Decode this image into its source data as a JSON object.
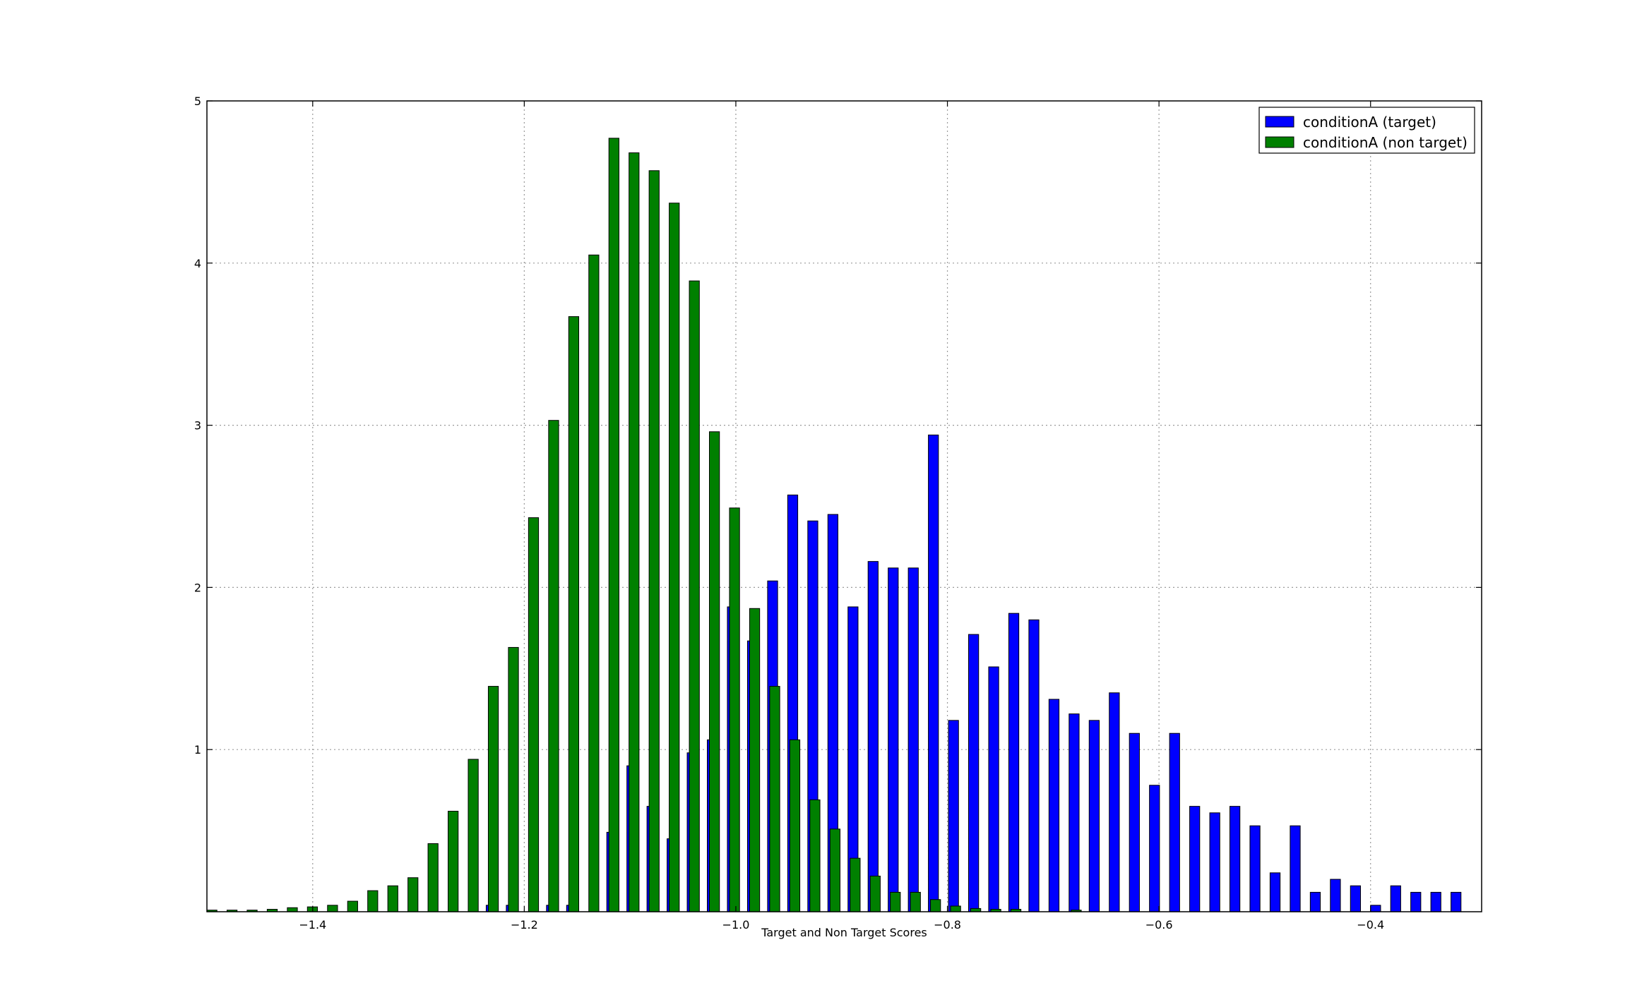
{
  "chart_data": {
    "type": "bar",
    "title": "",
    "xlabel": "Target and Non Target Scores",
    "ylabel": "",
    "xlim": [
      -1.5,
      -0.295
    ],
    "ylim": [
      0,
      5
    ],
    "grid": true,
    "legend_position": "top-right",
    "x_tick_values": [
      -1.4,
      -1.2,
      -1.0,
      -0.8,
      -0.6,
      -0.4
    ],
    "x_tick_labels": [
      "−1.4",
      "−1.2",
      "−1.0",
      "−0.8",
      "−0.6",
      "−0.4"
    ],
    "y_tick_values": [
      1,
      2,
      3,
      4,
      5
    ],
    "y_tick_labels": [
      "1",
      "2",
      "3",
      "4",
      "5"
    ],
    "series": [
      {
        "name": "conditionA (target)",
        "color": "#0000ff",
        "x_start": -1.236,
        "bin_width": 0.019,
        "values": [
          0.04,
          0.04,
          0.0,
          0.04,
          0.04,
          0.0,
          0.49,
          0.9,
          0.65,
          0.45,
          0.98,
          1.06,
          1.88,
          1.67,
          2.04,
          2.57,
          2.41,
          2.45,
          1.88,
          2.16,
          2.12,
          2.12,
          2.94,
          1.18,
          1.71,
          1.51,
          1.84,
          1.8,
          1.31,
          1.22,
          1.18,
          1.35,
          1.1,
          0.78,
          1.1,
          0.65,
          0.61,
          0.65,
          0.53,
          0.24,
          0.53,
          0.12,
          0.2,
          0.16,
          0.04,
          0.16,
          0.12,
          0.12,
          0.12
        ]
      },
      {
        "name": "conditionA (non target)",
        "color": "#008000",
        "x_start": -1.5,
        "bin_width": 0.019,
        "values": [
          0.01,
          0.01,
          0.01,
          0.015,
          0.025,
          0.03,
          0.04,
          0.065,
          0.13,
          0.16,
          0.21,
          0.42,
          0.62,
          0.94,
          1.39,
          1.63,
          2.43,
          3.03,
          3.67,
          4.05,
          4.77,
          4.68,
          4.57,
          4.37,
          3.89,
          2.96,
          2.49,
          1.87,
          1.39,
          1.06,
          0.69,
          0.51,
          0.33,
          0.22,
          0.12,
          0.12,
          0.075,
          0.035,
          0.02,
          0.015,
          0.015,
          0.0,
          0.0,
          0.01
        ]
      }
    ]
  }
}
